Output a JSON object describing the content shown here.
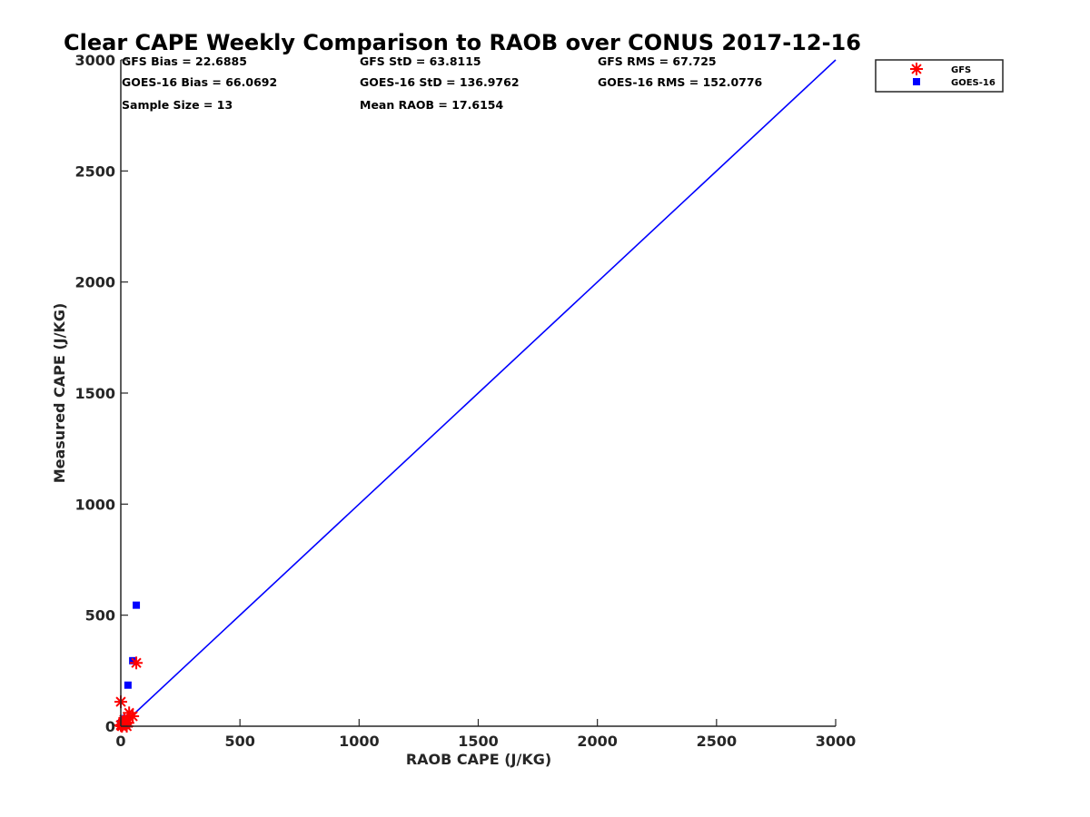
{
  "chart_data": {
    "type": "scatter",
    "title": "Clear CAPE Weekly Comparison to RAOB over CONUS 2017-12-16",
    "xlabel": "RAOB CAPE (J/KG)",
    "ylabel": "Measured CAPE (J/KG)",
    "xlim": [
      0,
      3000
    ],
    "ylim": [
      0,
      3000
    ],
    "xticks": [
      "0",
      "500",
      "1000",
      "1500",
      "2000",
      "2500",
      "3000"
    ],
    "yticks": [
      "0",
      "500",
      "1000",
      "1500",
      "2000",
      "2500",
      "3000"
    ],
    "grid": false,
    "legend_position": "top-right",
    "stats": [
      "GFS Bias = 22.6885",
      "GFS StD = 63.8115",
      "GFS RMS = 67.725",
      "GOES-16 Bias = 66.0692",
      "GOES-16 StD = 136.9762",
      "GOES-16 RMS = 152.0776",
      "Sample Size = 13",
      "Mean RAOB = 17.6154"
    ],
    "series": [
      {
        "name": "GFS",
        "marker": "asterisk",
        "color": "#ff0000",
        "points": [
          [
            0,
            110
          ],
          [
            65,
            285
          ],
          [
            35,
            60
          ],
          [
            50,
            45
          ],
          [
            10,
            20
          ],
          [
            20,
            10
          ],
          [
            0,
            5
          ],
          [
            25,
            0
          ],
          [
            5,
            0
          ],
          [
            15,
            30
          ],
          [
            30,
            15
          ],
          [
            2,
            2
          ],
          [
            8,
            8
          ]
        ]
      },
      {
        "name": "GOES-16",
        "marker": "square",
        "color": "#0000ff",
        "points": [
          [
            65,
            545
          ],
          [
            50,
            295
          ],
          [
            30,
            185
          ],
          [
            20,
            35
          ],
          [
            10,
            25
          ],
          [
            15,
            10
          ],
          [
            5,
            5
          ],
          [
            0,
            0
          ],
          [
            25,
            20
          ],
          [
            8,
            15
          ],
          [
            3,
            8
          ],
          [
            12,
            3
          ],
          [
            0,
            12
          ]
        ]
      }
    ],
    "reference_line": {
      "x": [
        0,
        3000
      ],
      "y": [
        0,
        3000
      ],
      "color": "#0000ff"
    }
  }
}
